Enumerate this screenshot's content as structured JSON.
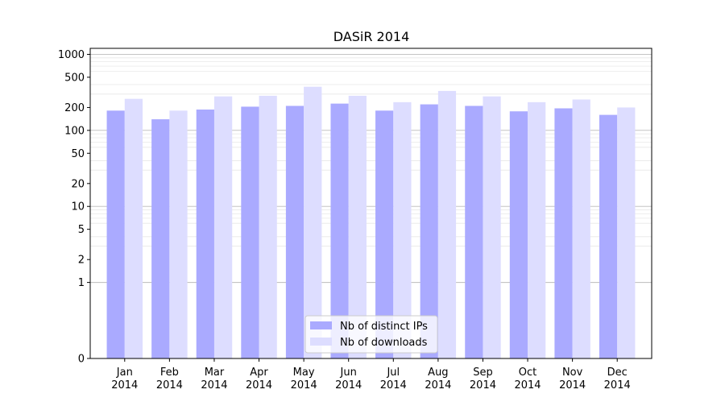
{
  "chart_data": {
    "type": "bar",
    "title": "DASiR 2014",
    "xlabel": "",
    "ylabel": "",
    "yscale": "symlog",
    "ylim": [
      0,
      1200
    ],
    "yticks": [
      "0",
      "1",
      "2",
      "5",
      "10",
      "20",
      "50",
      "100",
      "200",
      "500",
      "1000"
    ],
    "categories": [
      {
        "month": "Jan",
        "year": "2014"
      },
      {
        "month": "Feb",
        "year": "2014"
      },
      {
        "month": "Mar",
        "year": "2014"
      },
      {
        "month": "Apr",
        "year": "2014"
      },
      {
        "month": "May",
        "year": "2014"
      },
      {
        "month": "Jun",
        "year": "2014"
      },
      {
        "month": "Jul",
        "year": "2014"
      },
      {
        "month": "Aug",
        "year": "2014"
      },
      {
        "month": "Sep",
        "year": "2014"
      },
      {
        "month": "Oct",
        "year": "2014"
      },
      {
        "month": "Nov",
        "year": "2014"
      },
      {
        "month": "Dec",
        "year": "2014"
      }
    ],
    "series": [
      {
        "name": "Nb of distinct IPs",
        "color": "#aaaaff",
        "values": [
          182,
          140,
          188,
          205,
          210,
          225,
          182,
          220,
          210,
          178,
          195,
          160
        ]
      },
      {
        "name": "Nb of downloads",
        "color": "#ddddff",
        "values": [
          260,
          182,
          280,
          285,
          375,
          285,
          235,
          330,
          280,
          235,
          255,
          200
        ]
      }
    ],
    "grid": true,
    "legend_position": "bottom-center"
  }
}
